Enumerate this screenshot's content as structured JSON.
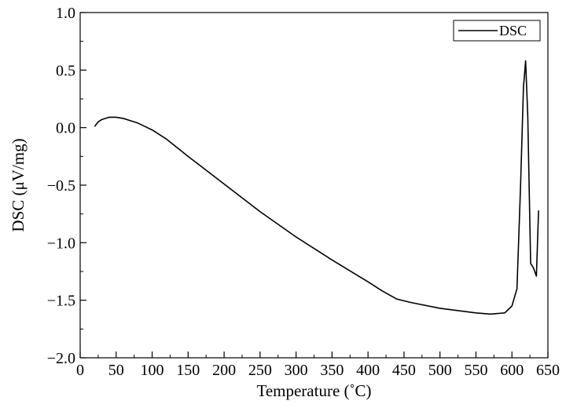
{
  "chart_data": {
    "type": "line",
    "title": "",
    "xlabel": "Temperature (˚C)",
    "ylabel": "DSC (μV/mg)",
    "xlim": [
      0,
      650
    ],
    "ylim": [
      -2.0,
      1.0
    ],
    "x_ticks": [
      0,
      50,
      100,
      150,
      200,
      250,
      300,
      350,
      400,
      450,
      500,
      550,
      600,
      650
    ],
    "x_tick_labels": [
      "0",
      "50",
      "100",
      "150",
      "200",
      "250",
      "300",
      "350",
      "400",
      "450",
      "500",
      "550",
      "600",
      "650"
    ],
    "y_ticks": [
      1.0,
      0.5,
      0.0,
      -0.5,
      -1.0,
      -1.5,
      -2.0
    ],
    "y_tick_labels": [
      "1.0",
      "0.5",
      "0.0",
      "−0.5",
      "−1.0",
      "−1.5",
      "−2.0"
    ],
    "grid": false,
    "legend_position": "top-right",
    "series": [
      {
        "name": "DSC",
        "color": "#000000",
        "x": [
          20,
          25,
          30,
          40,
          50,
          60,
          70,
          80,
          90,
          100,
          120,
          150,
          200,
          250,
          300,
          350,
          400,
          420,
          440,
          460,
          500,
          550,
          570,
          590,
          600,
          607,
          612,
          616,
          619,
          622,
          626,
          630,
          634,
          637
        ],
        "y": [
          0.01,
          0.05,
          0.07,
          0.09,
          0.09,
          0.08,
          0.06,
          0.04,
          0.01,
          -0.02,
          -0.1,
          -0.25,
          -0.49,
          -0.73,
          -0.95,
          -1.15,
          -1.34,
          -1.42,
          -1.49,
          -1.52,
          -1.57,
          -1.61,
          -1.62,
          -1.61,
          -1.55,
          -1.4,
          -0.5,
          0.35,
          0.58,
          0.1,
          -1.18,
          -1.22,
          -1.29,
          -0.72
        ]
      }
    ]
  }
}
